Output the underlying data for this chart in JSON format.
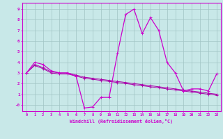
{
  "xlabel": "Windchill (Refroidissement éolien,°C)",
  "background_color": "#c8e8e8",
  "grid_color": "#a0c4c4",
  "line_color": "#cc00cc",
  "line_color2": "#aa00aa",
  "x_hours": [
    0,
    1,
    2,
    3,
    4,
    5,
    6,
    7,
    8,
    9,
    10,
    11,
    12,
    13,
    14,
    15,
    16,
    17,
    18,
    19,
    20,
    21,
    22,
    23
  ],
  "y_main": [
    3.0,
    4.0,
    3.8,
    3.2,
    3.0,
    3.0,
    2.7,
    -0.3,
    -0.2,
    0.7,
    0.7,
    4.8,
    8.5,
    9.0,
    6.7,
    8.2,
    7.0,
    4.0,
    3.0,
    1.3,
    1.5,
    1.5,
    1.3,
    2.9
  ],
  "y_line2": [
    3.0,
    3.8,
    3.5,
    3.1,
    3.0,
    3.0,
    2.8,
    2.6,
    2.5,
    2.4,
    2.3,
    2.2,
    2.1,
    2.0,
    1.9,
    1.8,
    1.7,
    1.6,
    1.5,
    1.4,
    1.3,
    1.2,
    1.1,
    1.0
  ],
  "y_line3": [
    3.0,
    3.7,
    3.4,
    3.0,
    2.9,
    2.9,
    2.7,
    2.5,
    2.4,
    2.3,
    2.2,
    2.1,
    2.0,
    1.9,
    1.8,
    1.7,
    1.6,
    1.5,
    1.4,
    1.3,
    1.2,
    1.1,
    1.0,
    0.9
  ],
  "ylim": [
    -0.6,
    9.6
  ],
  "xlim": [
    -0.5,
    23.5
  ],
  "yticks": [
    0,
    1,
    2,
    3,
    4,
    5,
    6,
    7,
    8,
    9
  ],
  "ytick_labels": [
    "-0",
    "1",
    "2",
    "3",
    "4",
    "5",
    "6",
    "7",
    "8",
    "9"
  ],
  "xtick_labels": [
    "0",
    "1",
    "2",
    "3",
    "4",
    "5",
    "6",
    "7",
    "8",
    "9",
    "10",
    "11",
    "12",
    "13",
    "14",
    "15",
    "16",
    "17",
    "18",
    "19",
    "20",
    "21",
    "22",
    "23"
  ]
}
